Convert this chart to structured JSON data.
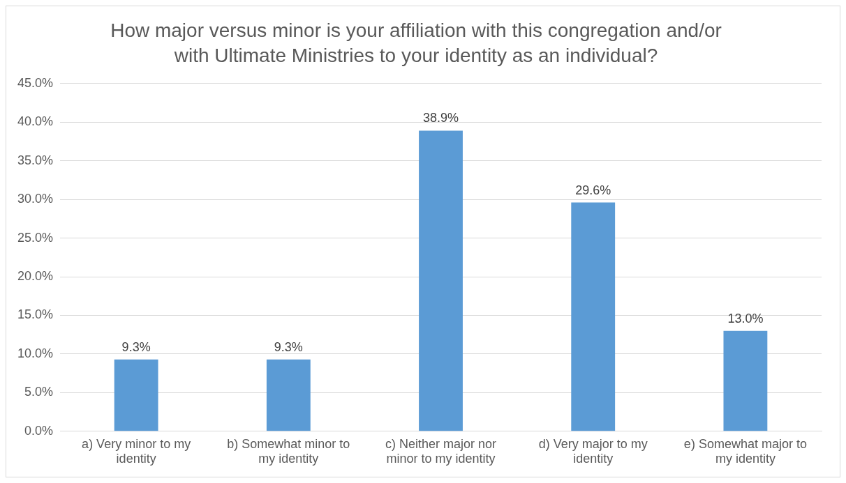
{
  "chart_data": {
    "type": "bar",
    "title": "How major versus minor is your affiliation with this congregation and/or with Ultimate Ministries to your identity as an individual?",
    "categories": [
      "a) Very minor to my identity",
      "b) Somewhat minor to my identity",
      "c) Neither major nor minor to my identity",
      "d) Very major to my identity",
      "e) Somewhat major to my identity"
    ],
    "values": [
      9.3,
      9.3,
      38.9,
      29.6,
      13.0
    ],
    "value_labels": [
      "9.3%",
      "9.3%",
      "38.9%",
      "29.6%",
      "13.0%"
    ],
    "color": "#5b9bd5",
    "ylim": [
      0,
      45
    ],
    "yticks": [
      {
        "value": 0,
        "label": "0.0%"
      },
      {
        "value": 5,
        "label": "5.0%"
      },
      {
        "value": 10,
        "label": "10.0%"
      },
      {
        "value": 15,
        "label": "15.0%"
      },
      {
        "value": 20,
        "label": "20.0%"
      },
      {
        "value": 25,
        "label": "25.0%"
      },
      {
        "value": 30,
        "label": "30.0%"
      },
      {
        "value": 35,
        "label": "35.0%"
      },
      {
        "value": 40,
        "label": "40.0%"
      },
      {
        "value": 45,
        "label": "45.0%"
      }
    ],
    "grid": "y",
    "legend": false
  }
}
